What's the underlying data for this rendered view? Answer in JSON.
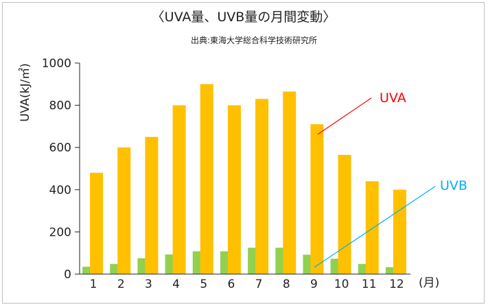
{
  "chart_data": {
    "type": "bar",
    "title": "〈UVA量、UVB量の月間変動〉",
    "subtitle": "出典:東海大学総合科学技術研究所",
    "ylabel": "UVA(kJ/㎡)",
    "x_unit": "(月)",
    "ylim": [
      0,
      1000
    ],
    "yticks": [
      0,
      200,
      400,
      600,
      800,
      1000
    ],
    "categories": [
      "1",
      "2",
      "3",
      "4",
      "5",
      "6",
      "7",
      "8",
      "9",
      "10",
      "11",
      "12"
    ],
    "series": [
      {
        "name": "UVA",
        "color": "#ffc000",
        "values": [
          480,
          600,
          650,
          800,
          900,
          800,
          830,
          865,
          710,
          565,
          440,
          400
        ]
      },
      {
        "name": "UVB",
        "color": "#92d050",
        "values": [
          35,
          48,
          75,
          93,
          108,
          108,
          125,
          125,
          92,
          73,
          48,
          33
        ]
      }
    ],
    "annotations": [
      {
        "label": "UVA",
        "color": "#ff0000"
      },
      {
        "label": "UVB",
        "color": "#00b0f0"
      }
    ],
    "grid": false,
    "legend": "none"
  }
}
